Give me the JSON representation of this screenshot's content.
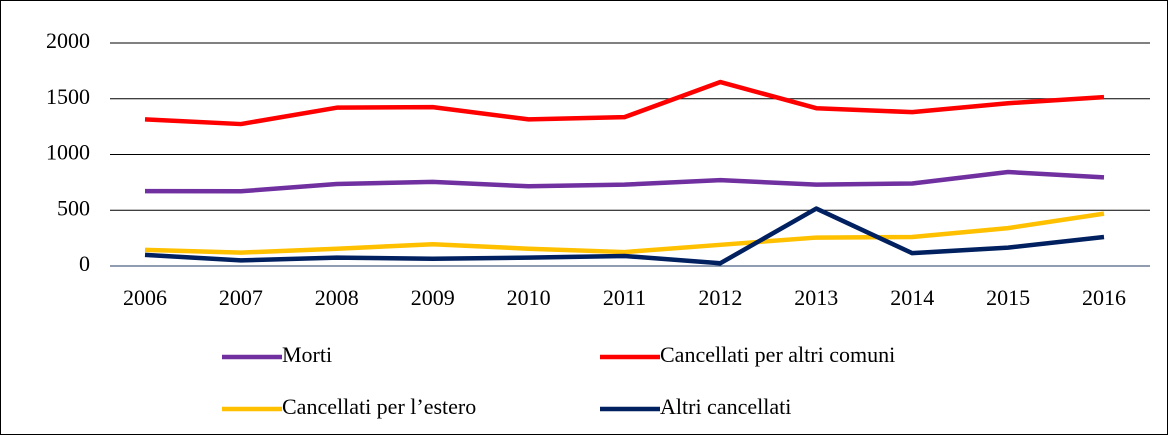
{
  "chart_data": {
    "type": "line",
    "categories": [
      "2006",
      "2007",
      "2008",
      "2009",
      "2010",
      "2011",
      "2012",
      "2013",
      "2014",
      "2015",
      "2016"
    ],
    "series": [
      {
        "name": "Morti",
        "color": "#7030a0",
        "values": [
          672,
          670,
          735,
          755,
          715,
          730,
          770,
          730,
          740,
          843,
          795
        ]
      },
      {
        "name": "Cancellati per altri comuni",
        "color": "#ff0000",
        "values": [
          1315,
          1273,
          1420,
          1425,
          1315,
          1335,
          1650,
          1415,
          1380,
          1460,
          1515
        ]
      },
      {
        "name": "Cancellati per l’estero",
        "color": "#ffc000",
        "values": [
          145,
          120,
          155,
          195,
          155,
          125,
          190,
          255,
          260,
          340,
          470
        ]
      },
      {
        "name": "Altri cancellati",
        "color": "#002060",
        "values": [
          100,
          50,
          75,
          65,
          75,
          90,
          25,
          515,
          115,
          165,
          260
        ]
      }
    ],
    "ylim": [
      0,
      2000
    ],
    "yticks": [
      0,
      500,
      1000,
      1500,
      2000
    ],
    "grid": true
  }
}
